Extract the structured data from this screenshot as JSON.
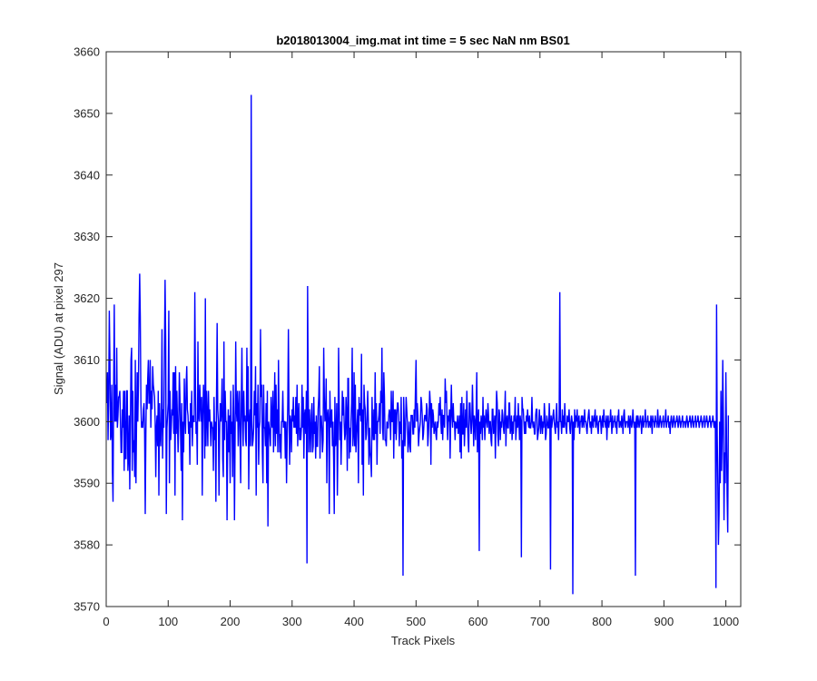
{
  "chart_data": {
    "type": "line",
    "title": "b2018013004_img.mat int time = 5 sec  NaN nm BS01",
    "xlabel": "Track Pixels",
    "ylabel": "Signal (ADU) at pixel 297",
    "xlim": [
      0,
      1024
    ],
    "ylim": [
      3570,
      3660
    ],
    "xticks": [
      0,
      100,
      200,
      300,
      400,
      500,
      600,
      700,
      800,
      900,
      1000
    ],
    "yticks": [
      3570,
      3580,
      3590,
      3600,
      3610,
      3620,
      3630,
      3640,
      3650,
      3660
    ],
    "grid": false,
    "line_color": "#0000ff",
    "series": [
      {
        "x_start": 1,
        "x_step": 1,
        "values": [
          3603,
          3608,
          3597,
          3604,
          3618,
          3610,
          3597,
          3598,
          3606,
          3592,
          3587,
          3605,
          3619,
          3600,
          3606,
          3600,
          3612,
          3599,
          3601,
          3604,
          3604,
          3605,
          3600,
          3595,
          3595,
          3602,
          3599,
          3605,
          3592,
          3605,
          3594,
          3594,
          3605,
          3605,
          3592,
          3594,
          3601,
          3589,
          3599,
          3610,
          3612,
          3592,
          3605,
          3595,
          3597,
          3591,
          3610,
          3590,
          3600,
          3608,
          3600,
          3606,
          3617,
          3624,
          3617,
          3603,
          3599,
          3600,
          3599,
          3602,
          3603,
          3598,
          3585,
          3598,
          3606,
          3602,
          3607,
          3610,
          3603,
          3603,
          3610,
          3599,
          3605,
          3602,
          3609,
          3606,
          3605,
          3604,
          3600,
          3591,
          3599,
          3601,
          3596,
          3605,
          3588,
          3603,
          3599,
          3596,
          3600,
          3615,
          3594,
          3602,
          3599,
          3612,
          3623,
          3613,
          3585,
          3599,
          3601,
          3603,
          3618,
          3590,
          3605,
          3597,
          3599,
          3602,
          3601,
          3608,
          3598,
          3608,
          3588,
          3609,
          3598,
          3605,
          3600,
          3595,
          3600,
          3608,
          3604,
          3598,
          3592,
          3603,
          3584,
          3600,
          3595,
          3607,
          3601,
          3598,
          3606,
          3609,
          3602,
          3601,
          3598,
          3600,
          3593,
          3603,
          3599,
          3605,
          3596,
          3601,
          3600,
          3600,
          3621,
          3606,
          3598,
          3600,
          3593,
          3613,
          3601,
          3600,
          3606,
          3603,
          3600,
          3604,
          3588,
          3601,
          3606,
          3603,
          3594,
          3620,
          3596,
          3605,
          3601,
          3596,
          3605,
          3600,
          3602,
          3599,
          3596,
          3600,
          3599,
          3599,
          3592,
          3604,
          3597,
          3600,
          3587,
          3604,
          3616,
          3602,
          3600,
          3588,
          3598,
          3603,
          3600,
          3602,
          3607,
          3594,
          3591,
          3613,
          3597,
          3605,
          3600,
          3600,
          3584,
          3597,
          3602,
          3595,
          3601,
          3590,
          3605,
          3598,
          3600,
          3591,
          3606,
          3600,
          3584,
          3597,
          3613,
          3602,
          3600,
          3605,
          3596,
          3602,
          3605,
          3597,
          3590,
          3603,
          3612,
          3601,
          3596,
          3605,
          3600,
          3601,
          3597,
          3596,
          3612,
          3600,
          3609,
          3589,
          3600,
          3602,
          3596,
          3653,
          3600,
          3596,
          3597,
          3599,
          3605,
          3601,
          3609,
          3588,
          3603,
          3599,
          3606,
          3593,
          3599,
          3600,
          3615,
          3604,
          3606,
          3595,
          3590,
          3606,
          3599,
          3599,
          3596,
          3603,
          3590,
          3605,
          3583,
          3600,
          3599,
          3598,
          3596,
          3604,
          3600,
          3599,
          3605,
          3595,
          3600,
          3608,
          3596,
          3606,
          3598,
          3602,
          3595,
          3610,
          3600,
          3595,
          3598,
          3594,
          3600,
          3600,
          3605,
          3599,
          3600,
          3600,
          3594,
          3600,
          3590,
          3597,
          3603,
          3615,
          3602,
          3593,
          3601,
          3600,
          3595,
          3602,
          3600,
          3604,
          3599,
          3601,
          3599,
          3604,
          3598,
          3606,
          3596,
          3601,
          3603,
          3597,
          3599,
          3597,
          3599,
          3606,
          3599,
          3604,
          3594,
          3601,
          3602,
          3598,
          3605,
          3577,
          3622,
          3605,
          3595,
          3602,
          3599,
          3595,
          3601,
          3603,
          3595,
          3596,
          3604,
          3598,
          3600,
          3594,
          3601,
          3596,
          3596,
          3602,
          3604,
          3609,
          3594,
          3600,
          3601,
          3599,
          3595,
          3597,
          3612,
          3604,
          3600,
          3601,
          3607,
          3590,
          3601,
          3602,
          3600,
          3585,
          3605,
          3599,
          3601,
          3602,
          3596,
          3600,
          3594,
          3585,
          3604,
          3596,
          3597,
          3603,
          3588,
          3597,
          3612,
          3603,
          3597,
          3600,
          3593,
          3598,
          3605,
          3601,
          3604,
          3600,
          3597,
          3598,
          3604,
          3601,
          3592,
          3607,
          3607,
          3594,
          3599,
          3595,
          3600,
          3603,
          3612,
          3596,
          3598,
          3608,
          3596,
          3606,
          3595,
          3598,
          3600,
          3602,
          3590,
          3604,
          3601,
          3603,
          3600,
          3611,
          3593,
          3602,
          3588,
          3606,
          3603,
          3602,
          3597,
          3598,
          3601,
          3605,
          3600,
          3593,
          3599,
          3595,
          3594,
          3591,
          3604,
          3599,
          3597,
          3602,
          3597,
          3608,
          3598,
          3603,
          3593,
          3600,
          3600,
          3601,
          3603,
          3598,
          3605,
          3603,
          3612,
          3599,
          3597,
          3608,
          3604,
          3597,
          3597,
          3596,
          3600,
          3599,
          3599,
          3601,
          3602,
          3601,
          3597,
          3605,
          3600,
          3600,
          3605,
          3594,
          3602,
          3598,
          3602,
          3597,
          3601,
          3603,
          3603,
          3601,
          3596,
          3600,
          3598,
          3604,
          3594,
          3597,
          3575,
          3604,
          3600,
          3596,
          3599,
          3604,
          3602,
          3600,
          3595,
          3597,
          3600,
          3596,
          3595,
          3601,
          3601,
          3601,
          3598,
          3598,
          3602,
          3599,
          3605,
          3610,
          3600,
          3603,
          3601,
          3596,
          3598,
          3599,
          3600,
          3604,
          3603,
          3601,
          3597,
          3598,
          3600,
          3601,
          3601,
          3600,
          3603,
          3602,
          3596,
          3598,
          3601,
          3605,
          3603,
          3593,
          3603,
          3599,
          3602,
          3601,
          3598,
          3599,
          3600,
          3598,
          3597,
          3600,
          3599,
          3600,
          3603,
          3601,
          3604,
          3600,
          3598,
          3602,
          3597,
          3601,
          3601,
          3599,
          3607,
          3603,
          3605,
          3600,
          3597,
          3601,
          3600,
          3602,
          3594,
          3601,
          3606,
          3601,
          3599,
          3603,
          3600,
          3600,
          3597,
          3600,
          3599,
          3599,
          3601,
          3598,
          3599,
          3601,
          3595,
          3603,
          3594,
          3604,
          3598,
          3598,
          3603,
          3596,
          3599,
          3602,
          3599,
          3605,
          3600,
          3597,
          3595,
          3603,
          3603,
          3600,
          3598,
          3600,
          3606,
          3601,
          3596,
          3601,
          3600,
          3597,
          3601,
          3608,
          3595,
          3600,
          3602,
          3579,
          3600,
          3598,
          3601,
          3600,
          3597,
          3604,
          3599,
          3601,
          3597,
          3600,
          3602,
          3600,
          3599,
          3603,
          3601,
          3598,
          3600,
          3600,
          3597,
          3596,
          3602,
          3602,
          3598,
          3599,
          3601,
          3594,
          3600,
          3605,
          3603,
          3598,
          3596,
          3602,
          3601,
          3597,
          3600,
          3599,
          3602,
          3601,
          3599,
          3598,
          3601,
          3605,
          3596,
          3600,
          3601,
          3599,
          3599,
          3603,
          3603,
          3598,
          3599,
          3601,
          3597,
          3600,
          3598,
          3601,
          3600,
          3604,
          3597,
          3599,
          3601,
          3599,
          3603,
          3600,
          3597,
          3601,
          3600,
          3578,
          3604,
          3602,
          3602,
          3600,
          3598,
          3600,
          3598,
          3601,
          3600,
          3602,
          3600,
          3599,
          3601,
          3599,
          3599,
          3600,
          3604,
          3600,
          3599,
          3600,
          3598,
          3598,
          3601,
          3602,
          3602,
          3597,
          3598,
          3599,
          3602,
          3600,
          3598,
          3601,
          3600,
          3598,
          3600,
          3599,
          3603,
          3601,
          3597,
          3598,
          3601,
          3600,
          3599,
          3599,
          3603,
          3600,
          3576,
          3601,
          3599,
          3600,
          3601,
          3602,
          3600,
          3599,
          3598,
          3601,
          3603,
          3599,
          3600,
          3597,
          3601,
          3621,
          3600,
          3600,
          3598,
          3602,
          3599,
          3601,
          3599,
          3603,
          3600,
          3599,
          3598,
          3601,
          3600,
          3600,
          3602,
          3599,
          3598,
          3600,
          3601,
          3600,
          3572,
          3600,
          3597,
          3602,
          3599,
          3601,
          3600,
          3602,
          3599,
          3600,
          3601,
          3598,
          3600,
          3600,
          3601,
          3599,
          3601,
          3600,
          3599,
          3602,
          3600,
          3600,
          3599,
          3598,
          3600,
          3601,
          3602,
          3600,
          3599,
          3600,
          3598,
          3601,
          3600,
          3599,
          3601,
          3600,
          3602,
          3599,
          3600,
          3601,
          3599,
          3598,
          3600,
          3600,
          3601,
          3600,
          3598,
          3600,
          3601,
          3599,
          3602,
          3600,
          3600,
          3599,
          3601,
          3597,
          3600,
          3601,
          3599,
          3600,
          3600,
          3602,
          3600,
          3598,
          3601,
          3599,
          3600,
          3600,
          3601,
          3599,
          3600,
          3598,
          3601,
          3600,
          3602,
          3599,
          3600,
          3600,
          3599,
          3601,
          3600,
          3598,
          3601,
          3602,
          3600,
          3599,
          3600,
          3600,
          3600,
          3599,
          3601,
          3600,
          3598,
          3601,
          3600,
          3599,
          3600,
          3602,
          3600,
          3599,
          3600,
          3575,
          3600,
          3601,
          3599,
          3601,
          3600,
          3599,
          3600,
          3601,
          3600,
          3598,
          3600,
          3601,
          3599,
          3600,
          3600,
          3602,
          3599,
          3600,
          3600,
          3601,
          3599,
          3600,
          3600,
          3599,
          3601,
          3600,
          3598,
          3601,
          3600,
          3600,
          3599,
          3601,
          3600,
          3600,
          3599,
          3602,
          3600,
          3599,
          3600,
          3601,
          3600,
          3599,
          3600,
          3600,
          3601,
          3599,
          3600,
          3600,
          3602,
          3599,
          3600,
          3600,
          3601,
          3599,
          3600,
          3598,
          3600,
          3601,
          3600,
          3599,
          3600,
          3601,
          3600,
          3599,
          3600,
          3600,
          3601,
          3600,
          3599,
          3600,
          3601,
          3600,
          3599,
          3600,
          3600,
          3601,
          3599,
          3600,
          3600,
          3600,
          3599,
          3600,
          3601,
          3600,
          3599,
          3600,
          3600,
          3601,
          3600,
          3599,
          3600,
          3601,
          3600,
          3599,
          3600,
          3600,
          3601,
          3599,
          3600,
          3600,
          3601,
          3600,
          3599,
          3600,
          3600,
          3601,
          3600,
          3599,
          3600,
          3600,
          3601,
          3599,
          3600,
          3600,
          3601,
          3600,
          3599,
          3600,
          3600,
          3601,
          3600,
          3599,
          3600,
          3600,
          3601,
          3600,
          3599,
          3600,
          3600,
          3573,
          3619,
          3598,
          3590,
          3580,
          3585,
          3600,
          3590,
          3605,
          3592,
          3598,
          3610,
          3600,
          3584,
          3595,
          3590,
          3608,
          3598,
          3588,
          3582,
          3601
        ]
      }
    ]
  }
}
